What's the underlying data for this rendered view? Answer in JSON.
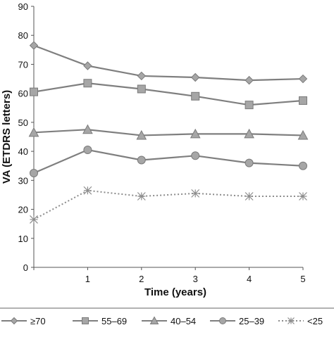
{
  "chart_data": {
    "type": "line",
    "xlabel": "Time (years)",
    "ylabel": "VA (ETDRS letters)",
    "x": [
      0,
      1,
      2,
      3,
      4,
      5
    ],
    "x_tick_labels": [
      "",
      "1",
      "2",
      "3",
      "4",
      "5"
    ],
    "ylim": [
      0,
      90
    ],
    "y_ticks": [
      0,
      10,
      20,
      30,
      40,
      50,
      60,
      70,
      80,
      90
    ],
    "grid": false,
    "legend_position": "bottom",
    "series": [
      {
        "name": "≥70",
        "marker": "diamond",
        "style": "solid",
        "color": "#7f7f7f",
        "values": [
          76.5,
          69.5,
          66,
          65.5,
          64.5,
          65
        ]
      },
      {
        "name": "55–69",
        "marker": "square",
        "style": "solid",
        "color": "#7f7f7f",
        "values": [
          60.5,
          63.5,
          61.5,
          59,
          56,
          57.5
        ]
      },
      {
        "name": "40–54",
        "marker": "triangle",
        "style": "solid",
        "color": "#7f7f7f",
        "values": [
          46.5,
          47.5,
          45.5,
          46,
          46,
          45.5
        ]
      },
      {
        "name": "25–39",
        "marker": "circle",
        "style": "solid",
        "color": "#7f7f7f",
        "values": [
          32.5,
          40.5,
          37,
          38.5,
          36,
          35
        ]
      },
      {
        "name": "<25",
        "marker": "star",
        "style": "dotted",
        "color": "#8c8c8c",
        "values": [
          16.5,
          26.5,
          24.5,
          25.5,
          24.5,
          24.5
        ]
      }
    ]
  }
}
